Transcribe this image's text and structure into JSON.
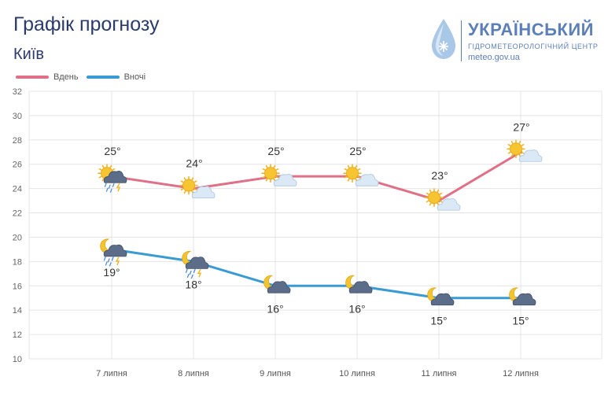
{
  "header": {
    "title": "Графік прогнозу",
    "subtitle": "Київ"
  },
  "logo": {
    "name": "УКРАЇНСЬКИЙ",
    "subname": "ГІДРОМЕТЕОРОЛОГІЧНИЙ ЦЕНТР",
    "url": "meteo.gov.ua"
  },
  "chart_data": {
    "type": "line",
    "categories": [
      "7 липня",
      "8 липня",
      "9 липня",
      "10 липня",
      "11 липня",
      "12 липня"
    ],
    "ylim": [
      10,
      32
    ],
    "yticks": [
      10,
      12,
      14,
      16,
      18,
      20,
      22,
      24,
      26,
      28,
      30,
      32
    ],
    "grid": true,
    "legend_position": "top-left",
    "series": [
      {
        "name": "Вдень",
        "color": "#e07087",
        "values": [
          25,
          24,
          25,
          25,
          23,
          27
        ],
        "labels": [
          "25°",
          "24°",
          "25°",
          "25°",
          "23°",
          "27°"
        ],
        "icons": [
          "sun-cloud-rain-icon",
          "sun-cloud-icon",
          "sun-cloud-icon",
          "sun-cloud-icon",
          "sun-cloud-icon",
          "sun-cloud-icon"
        ]
      },
      {
        "name": "Вночі",
        "color": "#3a9bd4",
        "values": [
          19,
          18,
          16,
          16,
          15,
          15
        ],
        "labels": [
          "19°",
          "18°",
          "16°",
          "16°",
          "15°",
          "15°"
        ],
        "icons": [
          "moon-cloud-rain-icon",
          "moon-cloud-rain-icon",
          "moon-cloud-icon",
          "moon-cloud-icon",
          "moon-cloud-icon",
          "moon-cloud-icon"
        ]
      }
    ]
  }
}
